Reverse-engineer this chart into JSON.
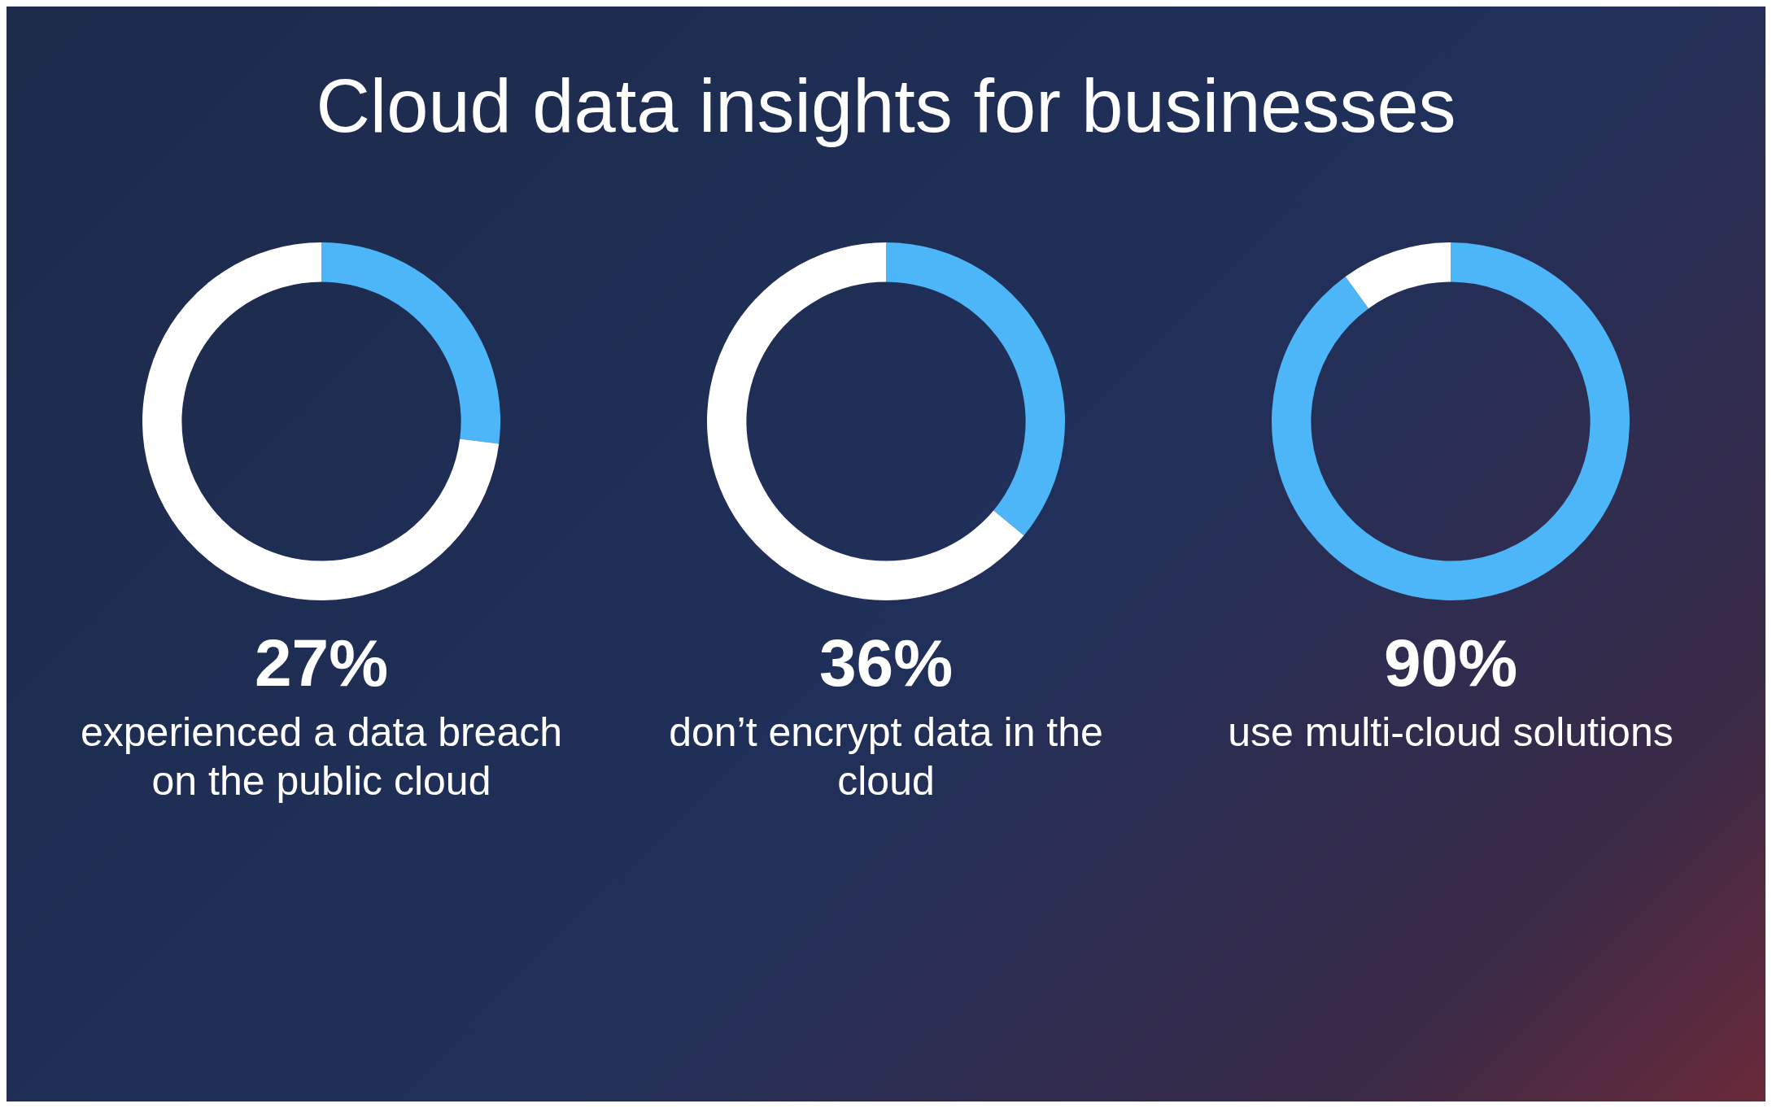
{
  "chart_data": [
    {
      "type": "donut",
      "title": "Cloud data insights for businesses",
      "categories": [
        null,
        null
      ],
      "values": [
        27,
        73
      ],
      "colors": [
        "#4db6f8",
        "#ffffff"
      ],
      "annotations": [
        "27%",
        "experienced a data breach on the public cloud"
      ]
    },
    {
      "type": "donut",
      "categories": [
        null,
        null
      ],
      "values": [
        36,
        64
      ],
      "colors": [
        "#4db6f8",
        "#ffffff"
      ],
      "annotations": [
        "36%",
        "don’t encrypt data in the cloud"
      ]
    },
    {
      "type": "donut",
      "categories": [
        null,
        null
      ],
      "values": [
        90,
        10
      ],
      "colors": [
        "#4db6f8",
        "#ffffff"
      ],
      "annotations": [
        "90%",
        "use multi-cloud solutions"
      ]
    }
  ]
}
